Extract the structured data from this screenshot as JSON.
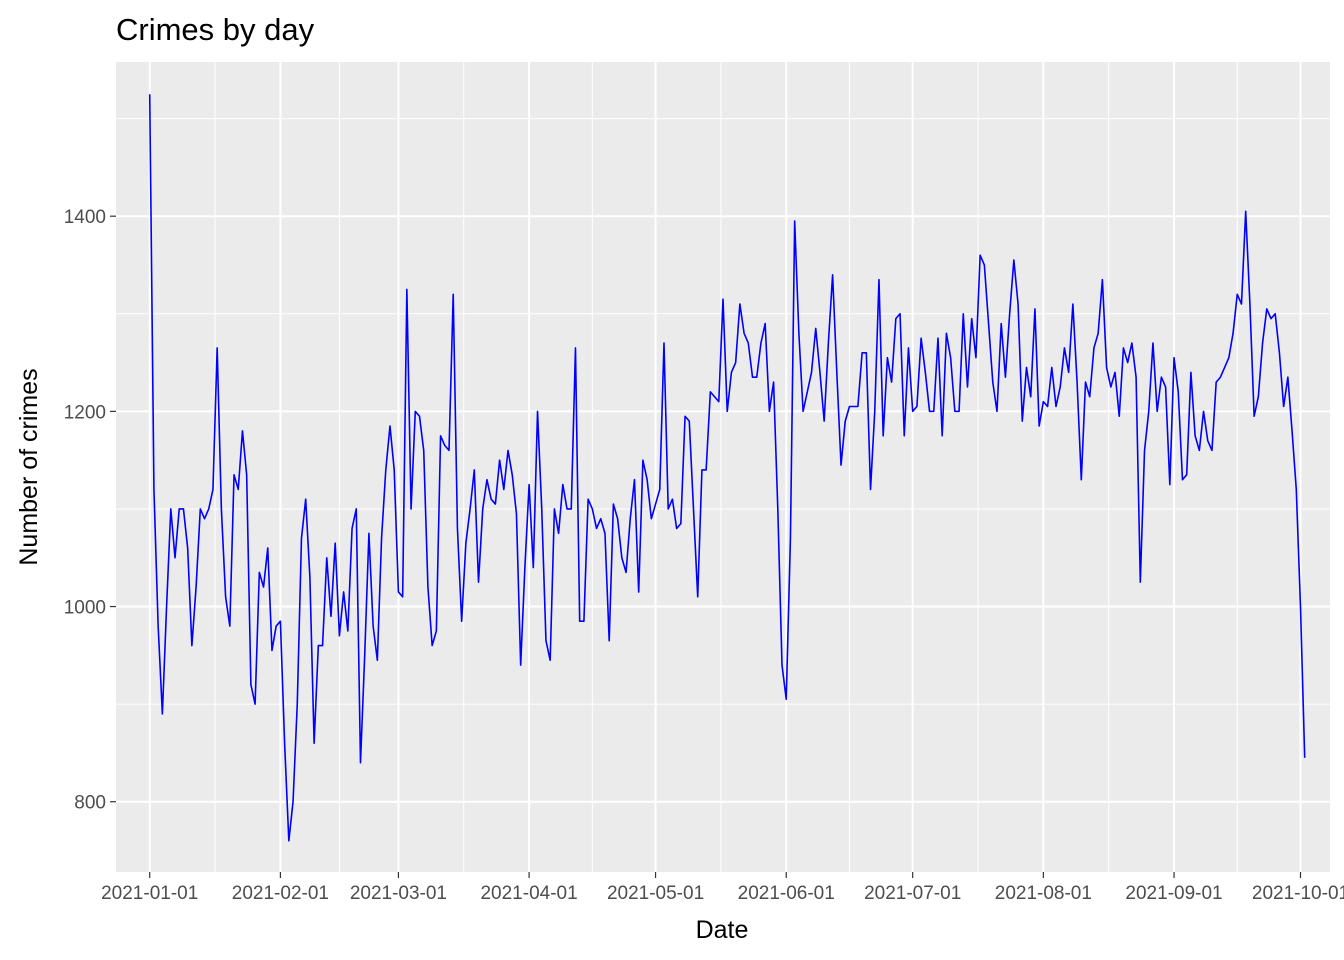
{
  "chart_data": {
    "type": "line",
    "title": "Crimes by day",
    "xlabel": "Date",
    "ylabel": "Number of crimes",
    "x_ticks": [
      "2021-01-01",
      "2021-02-01",
      "2021-03-01",
      "2021-04-01",
      "2021-05-01",
      "2021-06-01",
      "2021-07-01",
      "2021-08-01",
      "2021-09-01",
      "2021-10-01"
    ],
    "y_ticks": [
      800,
      1000,
      1200,
      1400
    ],
    "xlim": [
      "2020-12-24",
      "2021-10-08"
    ],
    "ylim": [
      728,
      1558
    ],
    "grid": true,
    "line_color": "#0000ff",
    "panel_color": "#ebebeb",
    "grid_color": "#ffffff",
    "series": [
      {
        "start_date": "2021-01-01",
        "values": [
          1525,
          1120,
          980,
          890,
          1000,
          1100,
          1050,
          1100,
          1100,
          1060,
          960,
          1020,
          1100,
          1090,
          1100,
          1120,
          1265,
          1100,
          1010,
          980,
          1135,
          1120,
          1180,
          1135,
          920,
          900,
          1035,
          1020,
          1060,
          955,
          980,
          985,
          860,
          760,
          800,
          900,
          1070,
          1110,
          1030,
          860,
          960,
          960,
          1050,
          990,
          1065,
          970,
          1015,
          975,
          1080,
          1100,
          840,
          950,
          1075,
          980,
          945,
          1070,
          1140,
          1185,
          1140,
          1015,
          1010,
          1325,
          1100,
          1200,
          1195,
          1160,
          1020,
          960,
          975,
          1175,
          1165,
          1160,
          1320,
          1080,
          985,
          1065,
          1100,
          1140,
          1025,
          1100,
          1130,
          1110,
          1105,
          1150,
          1120,
          1160,
          1135,
          1095,
          940,
          1040,
          1125,
          1040,
          1200,
          1100,
          965,
          945,
          1100,
          1075,
          1125,
          1100,
          1100,
          1265,
          985,
          985,
          1110,
          1100,
          1080,
          1090,
          1075,
          965,
          1105,
          1090,
          1050,
          1035,
          1090,
          1130,
          1015,
          1150,
          1130,
          1090,
          1105,
          1120,
          1270,
          1100,
          1110,
          1080,
          1085,
          1195,
          1190,
          1100,
          1010,
          1140,
          1140,
          1220,
          1215,
          1210,
          1315,
          1200,
          1240,
          1250,
          1310,
          1280,
          1270,
          1235,
          1235,
          1270,
          1290,
          1200,
          1230,
          1100,
          940,
          905,
          1070,
          1395,
          1280,
          1200,
          1220,
          1240,
          1285,
          1240,
          1190,
          1270,
          1340,
          1240,
          1145,
          1190,
          1205,
          1205,
          1205,
          1260,
          1260,
          1120,
          1200,
          1335,
          1175,
          1255,
          1230,
          1295,
          1300,
          1175,
          1265,
          1200,
          1205,
          1275,
          1240,
          1200,
          1200,
          1275,
          1175,
          1280,
          1255,
          1200,
          1200,
          1300,
          1225,
          1295,
          1255,
          1360,
          1350,
          1290,
          1230,
          1200,
          1290,
          1235,
          1300,
          1355,
          1310,
          1190,
          1245,
          1215,
          1305,
          1185,
          1210,
          1205,
          1245,
          1205,
          1225,
          1265,
          1240,
          1310,
          1230,
          1130,
          1230,
          1215,
          1265,
          1280,
          1335,
          1245,
          1225,
          1240,
          1195,
          1265,
          1250,
          1270,
          1235,
          1025,
          1160,
          1200,
          1270,
          1200,
          1235,
          1225,
          1125,
          1255,
          1220,
          1130,
          1135,
          1240,
          1175,
          1160,
          1200,
          1170,
          1160,
          1230,
          1235,
          1245,
          1255,
          1280,
          1320,
          1310,
          1405,
          1310,
          1195,
          1215,
          1270,
          1305,
          1295,
          1300,
          1260,
          1205,
          1235,
          1180,
          1120,
          1000,
          845
        ]
      }
    ]
  }
}
